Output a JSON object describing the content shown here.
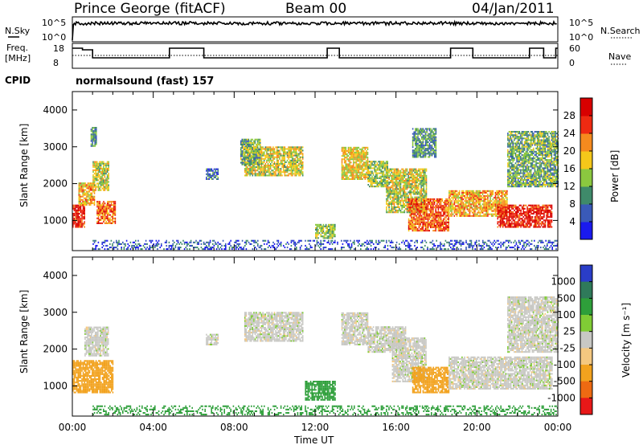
{
  "header": {
    "station": "Prince George (fitACF)",
    "beam": "Beam 00",
    "date": "04/Jan/2011"
  },
  "params_panel": {
    "nsky_label": "N.Sky",
    "nsearch_label": "N.Search",
    "freq_label": "Freq.",
    "freq_unit": "[MHz]",
    "nave_label": "Nave",
    "cpid_label": "CPID",
    "cpid_text": "normalsound (fast) 157",
    "noise_ticks": [
      "10^5",
      "10^0"
    ],
    "freq_ticks": [
      "18",
      "8"
    ],
    "nave_ticks": [
      "60",
      "0"
    ]
  },
  "chart_data": [
    {
      "type": "heatmap",
      "name": "power",
      "ylabel": "Slant Range [km]",
      "xlabel": "Time UT",
      "x_ticks": [
        "00:00",
        "04:00",
        "08:00",
        "12:00",
        "16:00",
        "20:00",
        "00:00"
      ],
      "xlim_hours": [
        0,
        24
      ],
      "y_ticks": [
        1000,
        2000,
        3000,
        4000
      ],
      "ylim": [
        180,
        4500
      ],
      "colorbar": {
        "label": "Power [dB]",
        "ticks": [
          4,
          8,
          12,
          16,
          20,
          24,
          28
        ],
        "range": [
          0,
          32
        ],
        "colors": [
          "#1a1aee",
          "#3a5ab8",
          "#3f8a6a",
          "#8bc83f",
          "#f5c81a",
          "#f58a1e",
          "#ee2a12",
          "#d80000"
        ]
      },
      "echo_regions": [
        {
          "t0": 0.0,
          "t1": 0.6,
          "r0": 800,
          "r1": 1400,
          "level": 28
        },
        {
          "t0": 0.3,
          "t1": 1.1,
          "r0": 1400,
          "r1": 2000,
          "level": 20
        },
        {
          "t0": 1.0,
          "t1": 1.8,
          "r0": 1800,
          "r1": 2600,
          "level": 16
        },
        {
          "t0": 1.2,
          "t1": 2.1,
          "r0": 900,
          "r1": 1500,
          "level": 24
        },
        {
          "t0": 0.9,
          "t1": 1.2,
          "r0": 3000,
          "r1": 3500,
          "level": 10
        },
        {
          "t0": 6.6,
          "t1": 7.2,
          "r0": 2100,
          "r1": 2400,
          "level": 8
        },
        {
          "t0": 8.5,
          "t1": 11.4,
          "r0": 2200,
          "r1": 3000,
          "level": 16
        },
        {
          "t0": 8.3,
          "t1": 9.3,
          "r0": 2500,
          "r1": 3200,
          "level": 12
        },
        {
          "t0": 12.0,
          "t1": 13.0,
          "r0": 500,
          "r1": 900,
          "level": 14
        },
        {
          "t0": 13.3,
          "t1": 14.6,
          "r0": 2100,
          "r1": 3000,
          "level": 18
        },
        {
          "t0": 14.6,
          "t1": 15.6,
          "r0": 1900,
          "r1": 2600,
          "level": 14
        },
        {
          "t0": 15.5,
          "t1": 17.5,
          "r0": 1200,
          "r1": 2400,
          "level": 16
        },
        {
          "t0": 16.6,
          "t1": 18.6,
          "r0": 700,
          "r1": 1600,
          "level": 24
        },
        {
          "t0": 16.8,
          "t1": 18.0,
          "r0": 2700,
          "r1": 3500,
          "level": 10
        },
        {
          "t0": 18.6,
          "t1": 21.5,
          "r0": 1100,
          "r1": 1800,
          "level": 20
        },
        {
          "t0": 21.0,
          "t1": 23.7,
          "r0": 800,
          "r1": 1400,
          "level": 28
        },
        {
          "t0": 21.5,
          "t1": 24.0,
          "r0": 1900,
          "r1": 3400,
          "level": 12
        },
        {
          "t0": 1.0,
          "t1": 24.0,
          "r0": 200,
          "r1": 450,
          "level": 6
        }
      ]
    },
    {
      "type": "heatmap",
      "name": "velocity",
      "ylabel": "Slant Range [km]",
      "xlabel": "Time UT",
      "x_ticks": [
        "00:00",
        "04:00",
        "08:00",
        "12:00",
        "16:00",
        "20:00",
        "00:00"
      ],
      "xlim_hours": [
        0,
        24
      ],
      "y_ticks": [
        1000,
        2000,
        3000,
        4000
      ],
      "ylim": [
        180,
        4500
      ],
      "colorbar": {
        "label": "Velocity [m s⁻¹]",
        "ticks": [
          "1000",
          "500",
          "100",
          "25",
          "-25",
          "-100",
          "-500",
          "-1000"
        ],
        "colors": [
          "#2a3dc8",
          "#2f7a5a",
          "#2e9f3a",
          "#80cc35",
          "#c8c8c4",
          "#f4c880",
          "#f2a21e",
          "#ee6a12",
          "#e81818"
        ]
      },
      "echo_regions": [
        {
          "t0": 0.0,
          "t1": 2.0,
          "r0": 800,
          "r1": 1700,
          "vel": -120
        },
        {
          "t0": 0.6,
          "t1": 1.8,
          "r0": 1800,
          "r1": 2600,
          "vel": 0
        },
        {
          "t0": 6.6,
          "t1": 7.2,
          "r0": 2100,
          "r1": 2400,
          "vel": 0
        },
        {
          "t0": 8.5,
          "t1": 11.4,
          "r0": 2200,
          "r1": 3000,
          "vel": 0
        },
        {
          "t0": 11.5,
          "t1": 13.0,
          "r0": 600,
          "r1": 1100,
          "vel": 120
        },
        {
          "t0": 13.3,
          "t1": 14.6,
          "r0": 2100,
          "r1": 3000,
          "vel": 0
        },
        {
          "t0": 14.6,
          "t1": 16.5,
          "r0": 1900,
          "r1": 2600,
          "vel": 0
        },
        {
          "t0": 15.8,
          "t1": 17.5,
          "r0": 1100,
          "r1": 2300,
          "vel": 0
        },
        {
          "t0": 16.8,
          "t1": 18.6,
          "r0": 800,
          "r1": 1500,
          "vel": -120
        },
        {
          "t0": 18.6,
          "t1": 23.7,
          "r0": 900,
          "r1": 1800,
          "vel": 0
        },
        {
          "t0": 21.5,
          "t1": 24.0,
          "r0": 1900,
          "r1": 3400,
          "vel": 0
        },
        {
          "t0": 1.0,
          "t1": 24.0,
          "r0": 200,
          "r1": 450,
          "vel": 90
        }
      ]
    }
  ]
}
